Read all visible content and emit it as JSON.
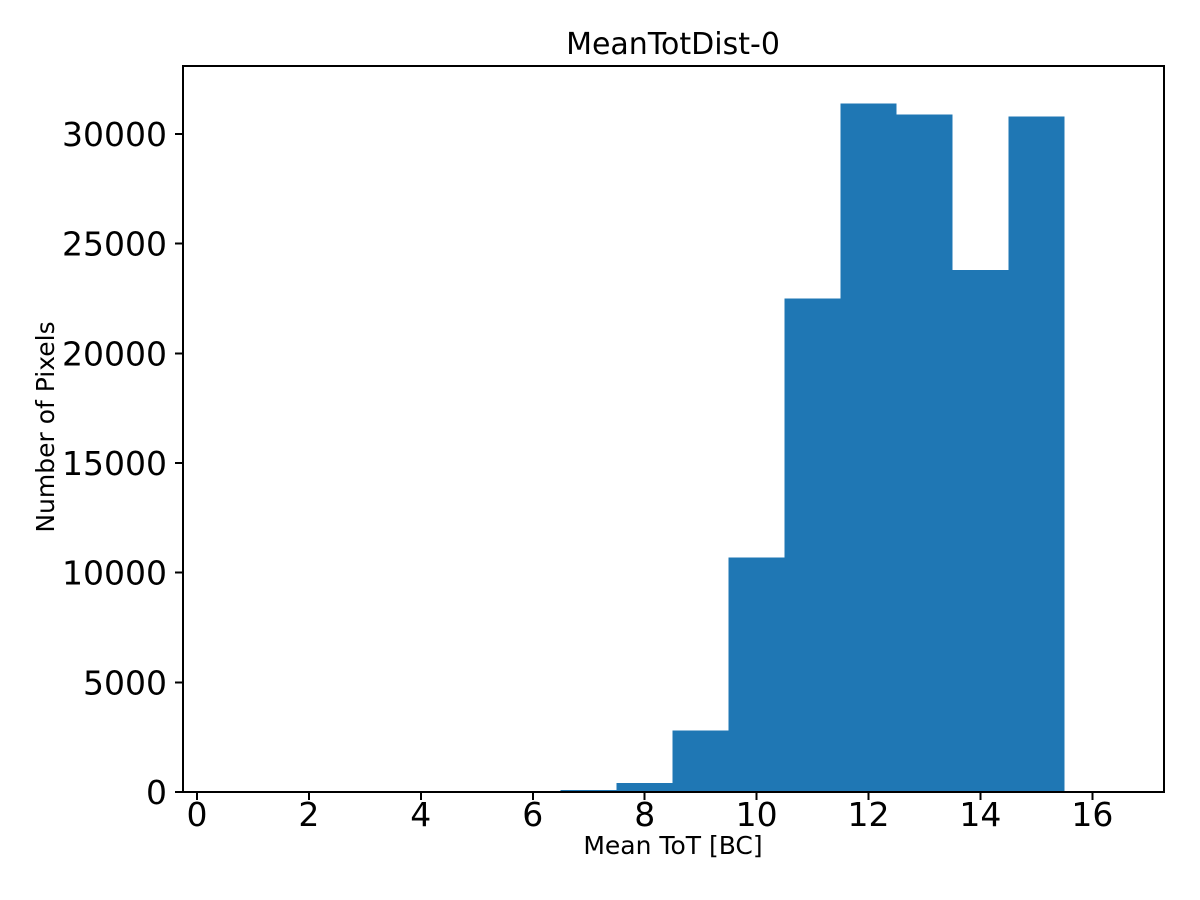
{
  "chart_data": {
    "type": "histogram",
    "title": "MeanTotDist-0",
    "xlabel": "Mean ToT [BC]",
    "ylabel": "Number of Pixels",
    "bar_color": "#1f77b4",
    "axis_color": "#000000",
    "background_color": "#ffffff",
    "bin_edges": [
      6.5,
      7.5,
      8.5,
      9.5,
      10.5,
      11.5,
      12.5,
      13.5,
      14.5,
      15.5
    ],
    "counts": [
      100,
      400,
      2800,
      10700,
      22500,
      31400,
      30900,
      23800,
      30800
    ],
    "x_ticks": [
      0,
      2,
      4,
      6,
      8,
      10,
      12,
      14,
      16
    ],
    "y_ticks": [
      0,
      5000,
      10000,
      15000,
      20000,
      25000,
      30000
    ],
    "xlim": [
      -0.25,
      17.28
    ],
    "ylim": [
      0,
      33100
    ],
    "grid": false,
    "legend": null
  }
}
